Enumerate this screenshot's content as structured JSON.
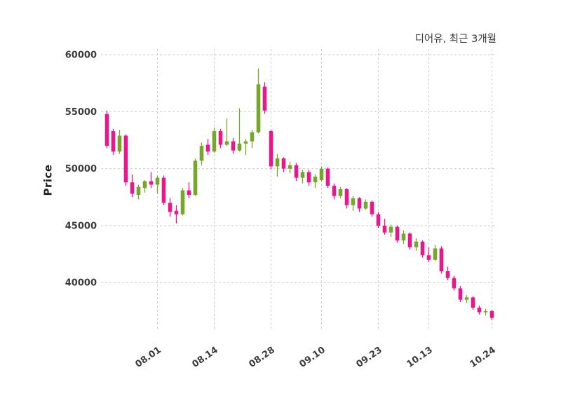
{
  "header": {
    "title": "디어유, 최근 3개월"
  },
  "axes": {
    "y_label": "Price"
  },
  "colors": {
    "up": "#76a62a",
    "down": "#e8188c",
    "grid": "#cccccc",
    "tick_text": "#3c3c3c",
    "background": "#ffffff"
  },
  "chart_data": {
    "type": "candlestick",
    "title": "디어유, 최근 3개월",
    "ylabel": "Price",
    "xlabel": "",
    "legend": "none",
    "grid": "dashed",
    "ylim": [
      36200,
      60500
    ],
    "y_ticks": [
      40000,
      45000,
      50000,
      55000,
      60000
    ],
    "x_tick_labels": [
      "08.01",
      "08.14",
      "08.28",
      "09.10",
      "09.23",
      "10.13",
      "10.24"
    ],
    "x_tick_indices": [
      8,
      17,
      26,
      34,
      43,
      51,
      61
    ],
    "up_color": "#76a62a",
    "down_color": "#e8188c",
    "ohlc": [
      [
        54800,
        55100,
        51800,
        52000
      ],
      [
        53300,
        53500,
        51200,
        51500
      ],
      [
        51500,
        53400,
        51300,
        52900
      ],
      [
        52900,
        53000,
        48500,
        48800
      ],
      [
        48800,
        49500,
        47500,
        47800
      ],
      [
        47700,
        48600,
        47300,
        48400
      ],
      [
        48300,
        49000,
        47900,
        48900
      ],
      [
        48900,
        49700,
        48300,
        48600
      ],
      [
        48600,
        49400,
        47800,
        49200
      ],
      [
        49200,
        49400,
        46800,
        47000
      ],
      [
        47000,
        47400,
        45800,
        46200
      ],
      [
        46300,
        46800,
        45200,
        46000
      ],
      [
        46000,
        48300,
        45900,
        48100
      ],
      [
        48100,
        48800,
        47400,
        47700
      ],
      [
        47700,
        50900,
        47600,
        50700
      ],
      [
        50700,
        52300,
        50300,
        52000
      ],
      [
        52100,
        52600,
        51200,
        51500
      ],
      [
        51500,
        53600,
        51400,
        53300
      ],
      [
        53300,
        53500,
        51800,
        52100
      ],
      [
        52100,
        54400,
        52000,
        52400
      ],
      [
        52400,
        52700,
        51300,
        51600
      ],
      [
        51600,
        55300,
        51500,
        52200
      ],
      [
        52200,
        52600,
        51200,
        52400
      ],
      [
        52400,
        53400,
        51800,
        53200
      ],
      [
        53200,
        58800,
        53100,
        57400
      ],
      [
        57200,
        57600,
        54800,
        55100
      ],
      [
        53300,
        53400,
        49900,
        50200
      ],
      [
        50200,
        51300,
        49300,
        50900
      ],
      [
        50900,
        51000,
        49700,
        50000
      ],
      [
        50000,
        50600,
        49600,
        50300
      ],
      [
        50300,
        50500,
        48900,
        49200
      ],
      [
        49200,
        49900,
        48700,
        49700
      ],
      [
        49700,
        49900,
        48500,
        48800
      ],
      [
        48800,
        49500,
        48300,
        49300
      ],
      [
        49000,
        50200,
        48900,
        50000
      ],
      [
        50000,
        50100,
        48300,
        48500
      ],
      [
        48500,
        48700,
        47300,
        47600
      ],
      [
        47600,
        48400,
        47400,
        48200
      ],
      [
        48200,
        48300,
        46500,
        46800
      ],
      [
        46800,
        47600,
        46300,
        47400
      ],
      [
        47400,
        47500,
        46200,
        46500
      ],
      [
        46500,
        47300,
        46400,
        47100
      ],
      [
        47100,
        47200,
        45800,
        46000
      ],
      [
        46000,
        46200,
        44800,
        45000
      ],
      [
        45000,
        45600,
        44200,
        44400
      ],
      [
        44400,
        45100,
        44000,
        44900
      ],
      [
        44900,
        45000,
        43500,
        43700
      ],
      [
        43700,
        44600,
        43400,
        44300
      ],
      [
        44300,
        44400,
        42900,
        43100
      ],
      [
        43100,
        43900,
        42800,
        43600
      ],
      [
        43600,
        43700,
        42200,
        42400
      ],
      [
        42400,
        43100,
        41800,
        42000
      ],
      [
        42000,
        43300,
        41900,
        43000
      ],
      [
        43000,
        43200,
        40800,
        41000
      ],
      [
        41000,
        41400,
        40200,
        40400
      ],
      [
        40400,
        40600,
        39300,
        39500
      ],
      [
        39500,
        39700,
        38300,
        38500
      ],
      [
        38500,
        38900,
        38200,
        38700
      ],
      [
        38700,
        38800,
        37600,
        37800
      ],
      [
        37800,
        38000,
        37200,
        37400
      ],
      [
        37400,
        37700,
        37100,
        37500
      ],
      [
        37500,
        37600,
        36700,
        36900
      ]
    ]
  }
}
